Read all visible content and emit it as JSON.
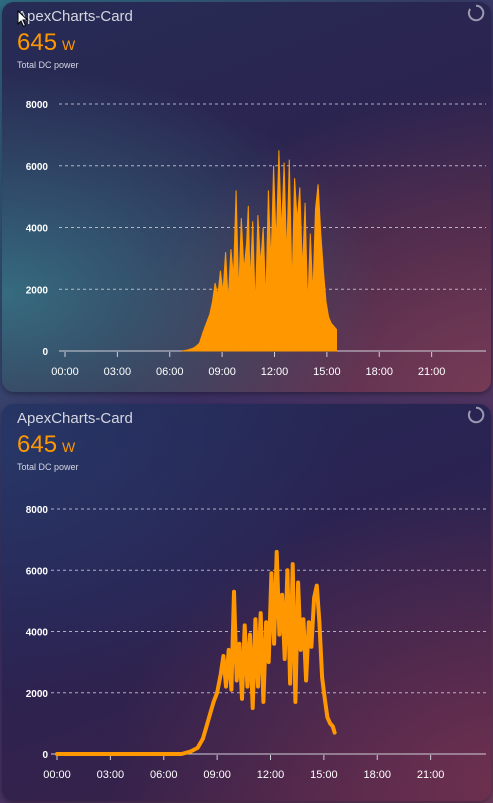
{
  "cards": [
    {
      "title": "ApexCharts-Card",
      "state_value": "645",
      "state_unit": "W",
      "state_name": "Total DC power",
      "loader_icon": "loading-spinner-icon"
    },
    {
      "title": "ApexCharts-Card",
      "state_value": "645",
      "state_unit": "W",
      "state_name": "Total DC power",
      "loader_icon": "loading-spinner-icon"
    }
  ],
  "chart_data": [
    {
      "type": "area",
      "title": "",
      "xlabel": "",
      "ylabel": "",
      "color": "#ff9800",
      "grid": true,
      "x_ticks": [
        "00:00",
        "03:00",
        "06:00",
        "09:00",
        "12:00",
        "15:00",
        "18:00",
        "21:00"
      ],
      "y_ticks": [
        "8000",
        "6000",
        "4000",
        "2000",
        "0"
      ],
      "xlim_hours": [
        0,
        24
      ],
      "ylim": [
        0,
        8000
      ],
      "series": [
        {
          "x_hours": [
            6.7,
            7.0,
            7.3,
            7.5,
            7.7,
            7.9,
            8.1,
            8.3,
            8.45,
            8.6,
            8.75,
            8.9,
            9.05,
            9.2,
            9.35,
            9.5,
            9.65,
            9.8,
            9.95,
            10.1,
            10.25,
            10.4,
            10.5,
            10.6,
            10.75,
            10.9,
            11.05,
            11.2,
            11.35,
            11.5,
            11.65,
            11.8,
            11.95,
            12.1,
            12.25,
            12.4,
            12.55,
            12.7,
            12.85,
            13.0,
            13.15,
            13.3,
            13.45,
            13.6,
            13.75,
            13.9,
            14.05,
            14.2,
            14.35,
            14.5,
            14.65,
            14.8,
            14.95,
            15.1,
            15.25,
            15.4,
            15.55
          ],
          "values": [
            0,
            30,
            80,
            150,
            250,
            600,
            900,
            1200,
            1600,
            2200,
            1800,
            2600,
            1900,
            3200,
            1600,
            3300,
            2400,
            5200,
            1800,
            4300,
            2600,
            3500,
            4700,
            2200,
            4200,
            1400,
            4400,
            2800,
            4000,
            1600,
            5200,
            2800,
            6000,
            3400,
            6500,
            3800,
            6100,
            3000,
            6200,
            2000,
            5600,
            4200,
            5300,
            2600,
            4800,
            1400,
            3800,
            1800,
            4600,
            5400,
            3800,
            2600,
            1600,
            1100,
            900,
            800,
            700
          ]
        }
      ]
    },
    {
      "type": "line",
      "title": "",
      "xlabel": "",
      "ylabel": "",
      "color": "#ff9800",
      "grid": true,
      "x_ticks": [
        "00:00",
        "03:00",
        "06:00",
        "09:00",
        "12:00",
        "15:00",
        "18:00",
        "21:00"
      ],
      "y_ticks": [
        "8000",
        "6000",
        "4000",
        "2000",
        "0"
      ],
      "xlim_hours": [
        0,
        24
      ],
      "ylim": [
        0,
        8000
      ],
      "series": [
        {
          "x_hours": [
            0,
            1,
            2,
            3,
            4,
            5,
            6,
            7,
            7.5,
            7.9,
            8.2,
            8.4,
            8.6,
            8.8,
            9.0,
            9.2,
            9.35,
            9.5,
            9.65,
            9.8,
            9.95,
            10.1,
            10.25,
            10.4,
            10.55,
            10.7,
            10.85,
            11.0,
            11.15,
            11.3,
            11.45,
            11.6,
            11.75,
            11.9,
            12.05,
            12.2,
            12.35,
            12.5,
            12.65,
            12.8,
            12.95,
            13.1,
            13.25,
            13.4,
            13.55,
            13.7,
            13.85,
            14.0,
            14.15,
            14.3,
            14.45,
            14.6,
            14.75,
            14.9,
            15.05,
            15.2,
            15.35,
            15.5,
            15.6
          ],
          "values": [
            0,
            0,
            0,
            0,
            0,
            0,
            0,
            0,
            80,
            200,
            500,
            900,
            1300,
            1700,
            2000,
            2600,
            3200,
            2200,
            3400,
            2100,
            5300,
            2400,
            3600,
            1800,
            4200,
            2200,
            3900,
            1500,
            4400,
            2200,
            4600,
            1700,
            4300,
            3000,
            5900,
            3600,
            6600,
            3900,
            5200,
            3100,
            6000,
            2300,
            6200,
            1700,
            5600,
            3400,
            4400,
            2400,
            4300,
            3500,
            5100,
            5500,
            4300,
            2500,
            1800,
            1200,
            1000,
            900,
            700
          ]
        }
      ]
    }
  ]
}
